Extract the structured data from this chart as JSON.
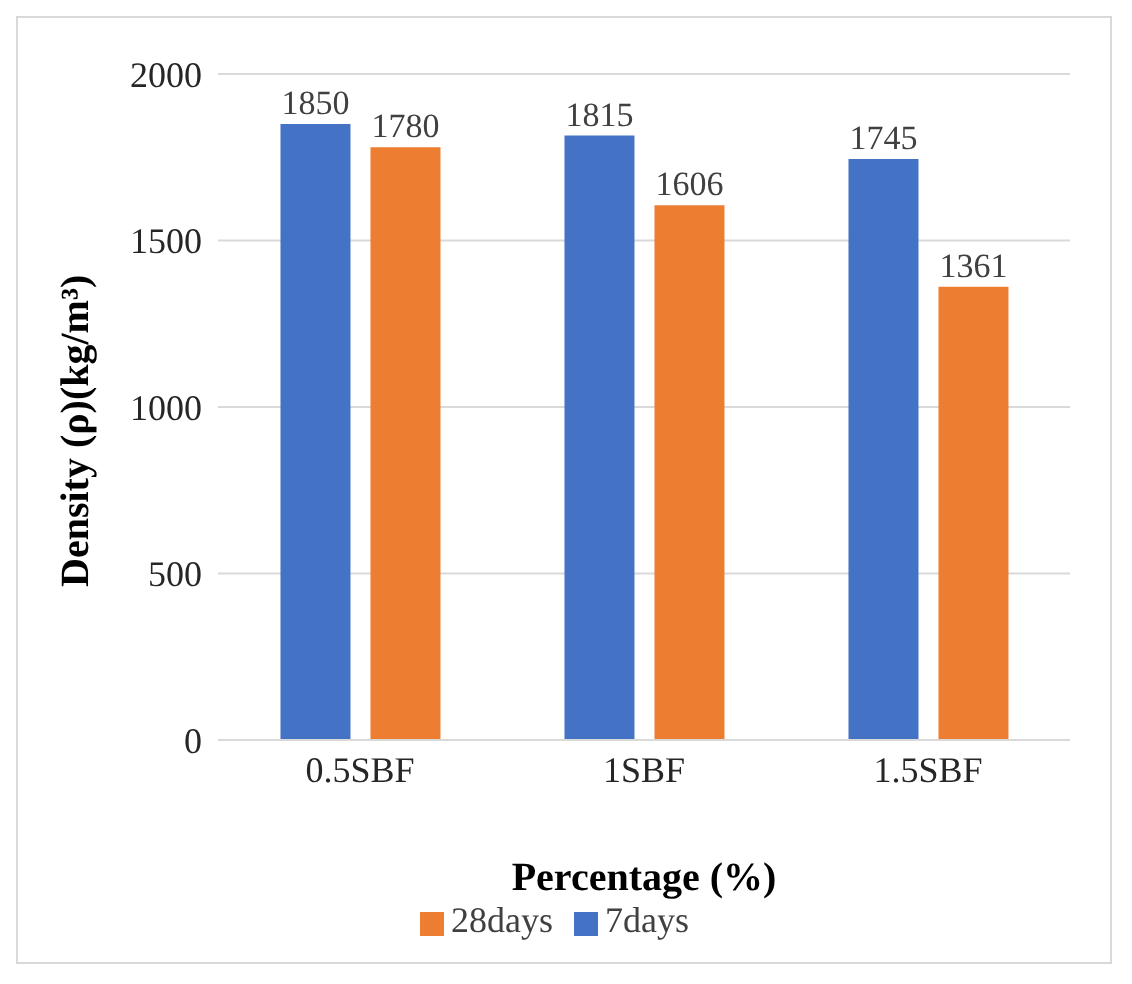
{
  "chart_data": {
    "type": "bar",
    "xlabel": "Percentage (%)",
    "ylabel": "Density (ρ)(kg/m³)",
    "categories": [
      "0.5SBF",
      "1SBF",
      "1.5SBF"
    ],
    "series": [
      {
        "name": "7days",
        "color": "#4472c4",
        "values": [
          1850,
          1815,
          1745
        ]
      },
      {
        "name": "28days",
        "color": "#ed7d31",
        "values": [
          1780,
          1606,
          1361
        ]
      }
    ],
    "ylim": [
      0,
      2000
    ],
    "yticks": [
      0,
      500,
      1000,
      1500,
      2000
    ],
    "grid": "y",
    "legend": "bottom",
    "data_labels": true
  }
}
